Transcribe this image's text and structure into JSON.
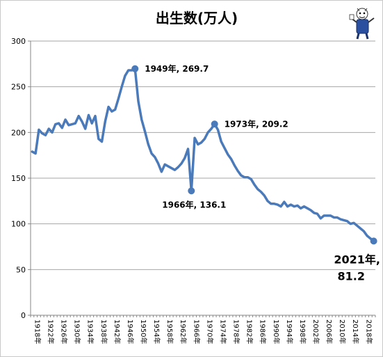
{
  "chart_data": {
    "type": "line",
    "title": "出生数(万人)",
    "xlabel": "",
    "ylabel": "",
    "ylim": [
      0,
      300
    ],
    "yticks": [
      0,
      50,
      100,
      150,
      200,
      250,
      300
    ],
    "grid": "horizontal",
    "legend": "none",
    "colors": {
      "line": "#4a7ab9",
      "grid": "#a6a6a6"
    },
    "x_tick_labels": [
      "1918年",
      "1922年",
      "1926年",
      "1930年",
      "1934年",
      "1938年",
      "1942年",
      "1946年",
      "1950年",
      "1954年",
      "1958年",
      "1962年",
      "1966年",
      "1970年",
      "1974年",
      "1978年",
      "1982年",
      "1986年",
      "1990年",
      "1994年",
      "1998年",
      "2002年",
      "2006年",
      "2010年",
      "2014年",
      "2018年"
    ],
    "series": [
      {
        "x": [
          1918,
          1919,
          1920,
          1921,
          1922,
          1923,
          1924,
          1925,
          1926,
          1927,
          1928,
          1929,
          1930,
          1931,
          1932,
          1933,
          1934,
          1935,
          1936,
          1937,
          1938,
          1939,
          1940,
          1941,
          1942,
          1943,
          1944,
          1945,
          1946,
          1947,
          1948,
          1949,
          1950,
          1951,
          1952,
          1953,
          1954,
          1955,
          1956,
          1957,
          1958,
          1959,
          1960,
          1961,
          1962,
          1963,
          1964,
          1965,
          1966,
          1967,
          1968,
          1969,
          1970,
          1971,
          1972,
          1973,
          1974,
          1975,
          1976,
          1977,
          1978,
          1979,
          1980,
          1981,
          1982,
          1983,
          1984,
          1985,
          1986,
          1987,
          1988,
          1989,
          1990,
          1991,
          1992,
          1993,
          1994,
          1995,
          1996,
          1997,
          1998,
          1999,
          2000,
          2001,
          2002,
          2003,
          2004,
          2005,
          2006,
          2007,
          2008,
          2009,
          2010,
          2011,
          2012,
          2013,
          2014,
          2015,
          2016,
          2017,
          2018,
          2019,
          2020,
          2021
        ],
        "y": [
          179,
          177,
          203,
          199,
          197,
          204,
          200,
          209,
          210,
          205,
          214,
          208,
          209,
          210,
          218,
          212,
          204,
          219,
          210,
          218,
          193,
          190,
          212,
          228,
          223,
          225,
          237,
          250,
          262,
          268,
          268,
          269.7,
          234,
          214,
          201,
          187,
          177,
          173,
          166,
          157,
          165,
          163,
          161,
          159,
          162,
          166,
          172,
          182,
          136.1,
          194,
          187,
          189,
          193,
          200,
          204,
          209.2,
          203,
          190,
          183,
          176,
          171,
          164,
          158,
          153,
          151,
          151,
          149,
          143,
          138,
          135,
          131,
          125,
          122,
          122,
          121,
          119,
          124,
          119,
          121,
          119,
          120,
          117,
          119,
          117,
          115,
          112,
          111,
          106,
          109,
          109,
          109,
          107,
          107,
          105,
          104,
          103,
          100,
          101,
          98,
          95,
          92,
          87,
          84,
          81.2
        ]
      }
    ],
    "annotations": [
      {
        "x": 1949,
        "y": 269.7,
        "label": "1949年, 269.7"
      },
      {
        "x": 1966,
        "y": 136.1,
        "label": "1966年, 136.1"
      },
      {
        "x": 1973,
        "y": 209.2,
        "label": "1973年, 209.2"
      },
      {
        "x": 2021,
        "y": 81.2,
        "label_line1": "2021年,",
        "label_line2": "81.2"
      }
    ]
  }
}
